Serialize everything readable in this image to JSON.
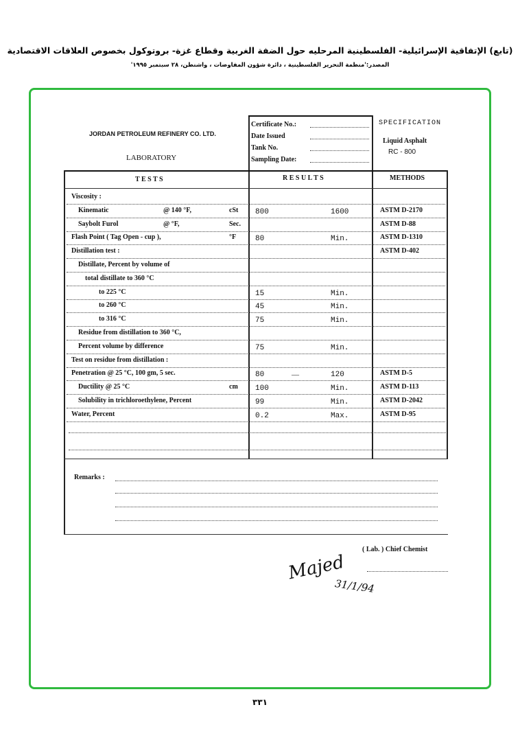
{
  "header": {
    "title": "(تابع) الإتفاقية الإسرائيلية- الفلسطينية المرحليه حول الضفة الغربية وقطاع غزة- بروتوكول بخصوص العلاقات الاقتصادية",
    "source": "المصدر:'منظمة التحرير الفلسطينية ، دائرة شؤون المفاوضات ، واشنطن، ٢٨ سبتمبر ١٩٩٥'"
  },
  "form": {
    "company": "JORDAN PETROLEUM REFINERY CO. LTD.",
    "department": "LABORATORY",
    "certificate_fields": [
      "Certificate No.:",
      "Date Issued",
      "Tank No.",
      "Sampling Date:"
    ],
    "spec_label": "SPECIFICATION",
    "product": "Liquid Asphalt",
    "grade": "RC - 800",
    "columns": {
      "tests": "T E S T S",
      "results": "R E S U L T S",
      "methods": "METHODS"
    },
    "rows": [
      {
        "test": "Viscosity :",
        "indent": 0
      },
      {
        "test": "Kinematic",
        "cond": "@ 140 °F,",
        "unit": "cSt",
        "min": "800",
        "max": "1600",
        "method": "ASTM D-2170",
        "indent": 1
      },
      {
        "test": "Saybolt Furol",
        "cond": "@ °F,",
        "unit": "Sec.",
        "method": "ASTM D-88",
        "indent": 1
      },
      {
        "test": "Flash Point ( Tag Open - cup ),",
        "unit": "°F",
        "min": "80",
        "max": "Min.",
        "method": "ASTM D-1310",
        "indent": 0
      },
      {
        "test": "Distillation test :",
        "method": "ASTM D-402",
        "indent": 0
      },
      {
        "test": "Distillate, Percent by volume of",
        "indent": 1
      },
      {
        "test": "total distillate to 360 °C",
        "indent": 2
      },
      {
        "test": "to 225 °C",
        "min": "15",
        "max": "Min.",
        "indent": 4
      },
      {
        "test": "to 260 °C",
        "min": "45",
        "max": "Min.",
        "indent": 4
      },
      {
        "test": "to 316 °C",
        "min": "75",
        "max": "Min.",
        "indent": 4
      },
      {
        "test": "Residue from distillation to 360 °C,",
        "indent": 1
      },
      {
        "test": "Percent volume by difference",
        "min": "75",
        "max": "Min.",
        "indent": 1
      },
      {
        "test": "Test on residue from distillation :",
        "indent": 0
      },
      {
        "test": "Penetration @ 25 °C, 100 gm, 5 sec.",
        "min": "80",
        "sep": "—",
        "max": "120",
        "method": "ASTM D-5",
        "indent": 0
      },
      {
        "test": "Ductility @ 25 °C",
        "unit": "cm",
        "min": "100",
        "max": "Min.",
        "method": "ASTM D-113",
        "indent": 1
      },
      {
        "test": "Solubility in trichloroethylene, Percent",
        "min": "99",
        "max": "Min.",
        "method": "ASTM D-2042",
        "indent": 1
      },
      {
        "test": "Water, Percent",
        "min": "0.2",
        "max": "Max.",
        "method": "ASTM D-95",
        "indent": 0
      }
    ],
    "remarks_label": "Remarks :",
    "signatory": "( Lab. ) Chief Chemist",
    "signature": "Majed",
    "signature_date": "31/1/94"
  },
  "page_number": "٣٣١",
  "colors": {
    "frame": "#2fba3e"
  }
}
